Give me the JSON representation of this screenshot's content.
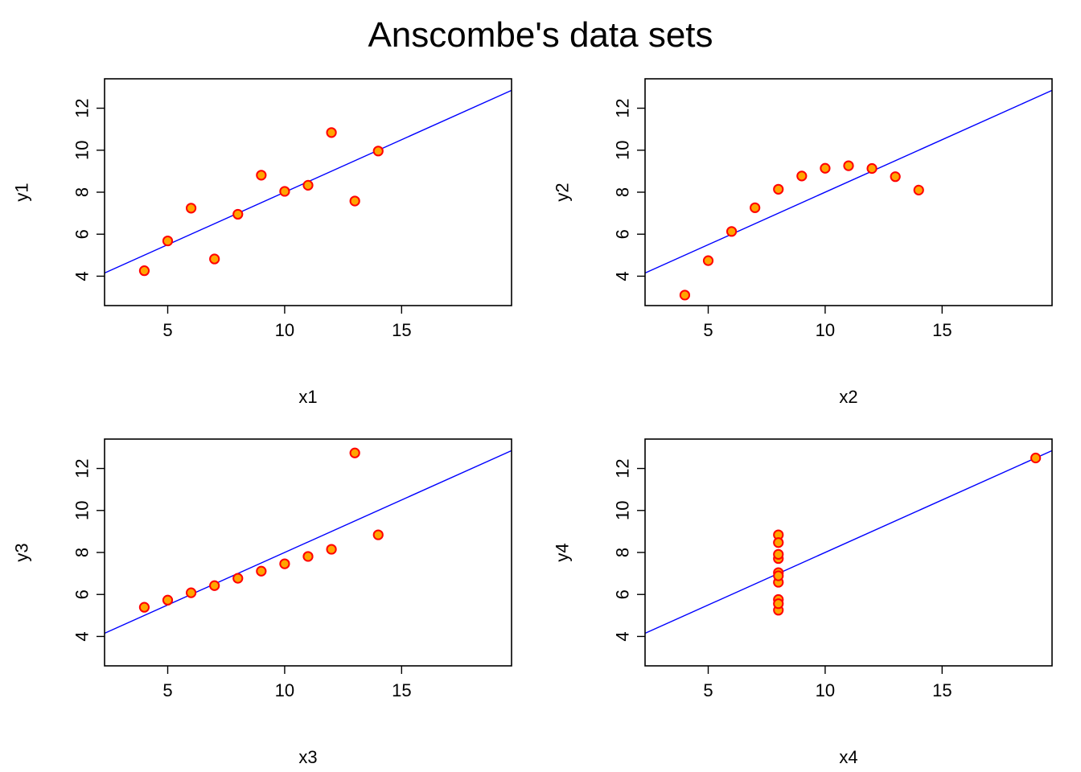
{
  "title": "Anscombe's data sets",
  "colors": {
    "point_fill": "#FFA500",
    "point_stroke": "#FF0000",
    "fit_line": "#0000FF",
    "frame": "#000000"
  },
  "chart_data": [
    {
      "type": "scatter",
      "xlabel": "x1",
      "ylabel": "y1",
      "xlim": [
        2.3,
        19.7
      ],
      "ylim": [
        2.6,
        13.4
      ],
      "xticks": [
        "5",
        "10",
        "15"
      ],
      "yticks": [
        "4",
        "6",
        "8",
        "10",
        "12"
      ],
      "grid": false,
      "fit_line": {
        "intercept": 3.0,
        "slope": 0.5
      },
      "x": [
        10,
        8,
        13,
        9,
        11,
        14,
        6,
        4,
        12,
        7,
        5
      ],
      "y": [
        8.04,
        6.95,
        7.58,
        8.81,
        8.33,
        9.96,
        7.24,
        4.26,
        10.84,
        4.82,
        5.68
      ]
    },
    {
      "type": "scatter",
      "xlabel": "x2",
      "ylabel": "y2",
      "xlim": [
        2.3,
        19.7
      ],
      "ylim": [
        2.6,
        13.4
      ],
      "xticks": [
        "5",
        "10",
        "15"
      ],
      "yticks": [
        "4",
        "6",
        "8",
        "10",
        "12"
      ],
      "grid": false,
      "fit_line": {
        "intercept": 3.0,
        "slope": 0.5
      },
      "x": [
        10,
        8,
        13,
        9,
        11,
        14,
        6,
        4,
        12,
        7,
        5
      ],
      "y": [
        9.14,
        8.14,
        8.74,
        8.77,
        9.26,
        8.1,
        6.13,
        3.1,
        9.13,
        7.26,
        4.74
      ]
    },
    {
      "type": "scatter",
      "xlabel": "x3",
      "ylabel": "y3",
      "xlim": [
        2.3,
        19.7
      ],
      "ylim": [
        2.6,
        13.4
      ],
      "xticks": [
        "5",
        "10",
        "15"
      ],
      "yticks": [
        "4",
        "6",
        "8",
        "10",
        "12"
      ],
      "grid": false,
      "fit_line": {
        "intercept": 3.0,
        "slope": 0.5
      },
      "x": [
        10,
        8,
        13,
        9,
        11,
        14,
        6,
        4,
        12,
        7,
        5
      ],
      "y": [
        7.46,
        6.77,
        12.74,
        7.11,
        7.81,
        8.84,
        6.08,
        5.39,
        8.15,
        6.42,
        5.73
      ]
    },
    {
      "type": "scatter",
      "xlabel": "x4",
      "ylabel": "y4",
      "xlim": [
        2.3,
        19.7
      ],
      "ylim": [
        2.6,
        13.4
      ],
      "xticks": [
        "5",
        "10",
        "15"
      ],
      "yticks": [
        "4",
        "6",
        "8",
        "10",
        "12"
      ],
      "grid": false,
      "fit_line": {
        "intercept": 3.0,
        "slope": 0.5
      },
      "x": [
        8,
        8,
        8,
        8,
        8,
        8,
        8,
        19,
        8,
        8,
        8
      ],
      "y": [
        6.58,
        5.76,
        7.71,
        8.84,
        8.47,
        7.04,
        5.25,
        12.5,
        5.56,
        7.91,
        6.89
      ]
    }
  ]
}
